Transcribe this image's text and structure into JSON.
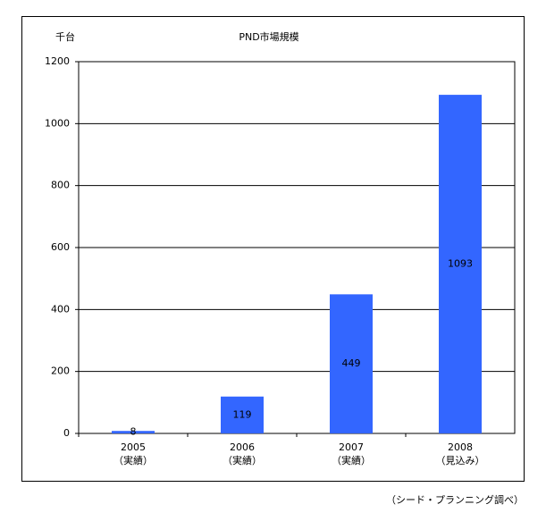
{
  "chart_data": {
    "type": "bar",
    "title": "PND市場規模",
    "y_unit": "千台",
    "categories": [
      "2005",
      "2006",
      "2007",
      "2008"
    ],
    "category_notes": [
      "（実績）",
      "（実績）",
      "（実績）",
      "（見込み）"
    ],
    "values": [
      8,
      119,
      449,
      1093
    ],
    "color": "#3366ff",
    "ylim": [
      0,
      1200
    ],
    "yticks": [
      0,
      200,
      400,
      600,
      800,
      1000,
      1200
    ],
    "grid": true,
    "source": "（シード・プランニング調べ）"
  }
}
